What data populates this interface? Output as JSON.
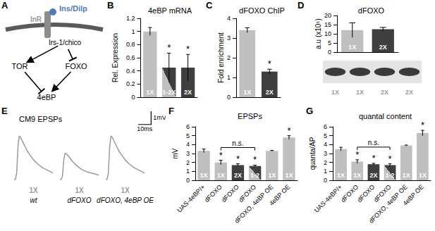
{
  "diagram": {
    "panel": "A",
    "nodes": [
      {
        "label": "Ins/Dilp",
        "color": "#4a7ebb"
      },
      {
        "label": "InR",
        "color": "#999999"
      },
      {
        "label": "Irs-1/chico",
        "color": "#000000"
      },
      {
        "label": "TOR",
        "color": "#000000"
      },
      {
        "label": "FOXO",
        "color": "#000000"
      },
      {
        "label": "4eBP",
        "color": "#000000"
      }
    ],
    "edges": [
      {
        "from": "Irs-1/chico",
        "to": "TOR",
        "kind": "activates"
      },
      {
        "from": "Irs-1/chico",
        "to": "FOXO",
        "kind": "inhibits"
      },
      {
        "from": "TOR",
        "to": "4eBP",
        "kind": "inhibits"
      },
      {
        "from": "FOXO",
        "to": "4eBP",
        "kind": "activates"
      }
    ]
  },
  "chart_data": [
    {
      "panel": "B",
      "type": "bar",
      "title": "4eBP mRNA",
      "ylabel": "Rel. Expression",
      "categories": [
        "1X",
        "1-2X",
        "2X"
      ],
      "values": [
        1.0,
        0.45,
        0.45
      ],
      "errors": [
        0.06,
        0.22,
        0.2
      ],
      "bar_labels": [
        "1X",
        "1-2X",
        "2X"
      ],
      "annotations": [
        null,
        "*",
        "*"
      ],
      "colors": [
        "#bfbfbf",
        [
          "#bfbfbf",
          "#3f3f3f"
        ],
        "#3f3f3f"
      ],
      "ylim": [
        0,
        1.2
      ],
      "yticks": [
        0,
        0.2,
        0.4,
        0.6,
        0.8,
        1,
        1.2
      ],
      "grid": false,
      "tick_labels": "y"
    },
    {
      "panel": "C",
      "type": "bar",
      "title": "dFOXO ChIP",
      "ylabel": "Fold enrichment",
      "categories": [
        "1X",
        "2X"
      ],
      "values": [
        3.4,
        1.3
      ],
      "errors": [
        0.12,
        0.12
      ],
      "bar_labels": [
        "1X",
        "2X"
      ],
      "annotations": [
        null,
        "*"
      ],
      "colors": [
        "#bfbfbf",
        "#3f3f3f"
      ],
      "ylim": [
        0,
        4
      ],
      "yticks": [
        0,
        1,
        2,
        3,
        4
      ],
      "grid": false,
      "tick_labels": "y"
    },
    {
      "panel": "D",
      "type": "bar",
      "title": "dFOXO",
      "ylabel": "a.u (x10⁵)",
      "categories": [
        "1X",
        "2X"
      ],
      "values": [
        12,
        12.5
      ],
      "errors": [
        4,
        1
      ],
      "bar_labels": [
        "1X",
        "2X"
      ],
      "colors": [
        "#bfbfbf",
        "#3f3f3f"
      ],
      "ylim": [
        0,
        20
      ],
      "yticks": [
        0,
        5,
        10,
        15,
        20
      ],
      "grid": false,
      "tick_labels": "y",
      "blot_lanes": [
        "1X",
        "1X",
        "2X",
        "2X"
      ]
    },
    {
      "panel": "E",
      "type": "line",
      "title": "CM9 EPSPs",
      "x": [
        0,
        1,
        2,
        3,
        4,
        5,
        6,
        8,
        10,
        12,
        15,
        18,
        22,
        26,
        30
      ],
      "series": [
        {
          "name": "wt",
          "label": "1X",
          "color": "#9a9a9a",
          "values": [
            0,
            0,
            0.5,
            2.5,
            3.3,
            3.2,
            3.0,
            2.6,
            2.2,
            1.9,
            1.5,
            1.2,
            0.9,
            0.7,
            0.5
          ]
        },
        {
          "name": "dFOXO",
          "label": "1X",
          "color": "#9a9a9a",
          "values": [
            0,
            0,
            0.3,
            1.5,
            2.0,
            1.95,
            1.85,
            1.6,
            1.35,
            1.15,
            0.9,
            0.7,
            0.55,
            0.45,
            0.35
          ]
        },
        {
          "name": "dFOXO, 4eBP OE",
          "label": "1X",
          "color": "#9a9a9a",
          "values": [
            0,
            0,
            0.5,
            2.4,
            3.3,
            3.2,
            3.0,
            2.6,
            2.2,
            1.9,
            1.5,
            1.2,
            0.9,
            0.7,
            0.5
          ]
        }
      ],
      "xlim": [
        0,
        30
      ],
      "ylim": [
        0,
        4
      ],
      "tick_labels": false,
      "scale_bar": {
        "x": 10,
        "x_label": "10ms",
        "y": 1,
        "y_label": "1mV"
      }
    },
    {
      "panel": "F",
      "type": "bar",
      "title": "EPSPs",
      "ylabel": "mV",
      "categories": [
        "UAS-4eBP/+",
        "dFOXO",
        "dFOXO",
        "dFOXO",
        "dFOXO, 4eBP OE",
        "4eBP OE"
      ],
      "values": [
        3.3,
        2.0,
        1.7,
        1.6,
        3.3,
        4.8
      ],
      "errors": [
        0.2,
        0.25,
        0.15,
        0.1,
        0.05,
        0.2
      ],
      "bar_labels": [
        "1X",
        "1X",
        "2X",
        "1-2",
        "1X",
        "1X"
      ],
      "annotations": [
        null,
        "*",
        "*",
        "*",
        null,
        "*"
      ],
      "bracket": {
        "from": 1,
        "to": 3,
        "text": "n.s."
      },
      "colors": [
        "#bfbfbf",
        "#bfbfbf",
        "#3f3f3f",
        [
          "#bfbfbf",
          "#3f3f3f"
        ],
        "#bfbfbf",
        "#bfbfbf"
      ],
      "ylim": [
        0,
        6
      ],
      "yticks": [
        0,
        1,
        2,
        3,
        4,
        5,
        6
      ],
      "grid": false
    },
    {
      "panel": "G",
      "type": "bar",
      "title": "quantal content",
      "ylabel": "quanta/AP",
      "categories": [
        "UAS-4eBP/+",
        "dFOXO",
        "dFOXO",
        "dFOXO",
        "dFOXO, 4eBP OE",
        "4eBP OE"
      ],
      "values": [
        3.5,
        2.1,
        1.8,
        1.7,
        3.9,
        5.3
      ],
      "errors": [
        0.2,
        0.2,
        0.1,
        0.15,
        0.05,
        0.3
      ],
      "bar_labels": [
        "1X",
        "1X",
        "2X",
        "1-2",
        "1X",
        "1X"
      ],
      "annotations": [
        null,
        "*",
        "*",
        "*",
        null,
        "*"
      ],
      "bracket": {
        "from": 1,
        "to": 3,
        "text": "n.s."
      },
      "colors": [
        "#bfbfbf",
        "#bfbfbf",
        "#3f3f3f",
        [
          "#bfbfbf",
          "#3f3f3f"
        ],
        "#bfbfbf",
        "#bfbfbf"
      ],
      "ylim": [
        0,
        6
      ],
      "yticks": [
        0,
        1,
        2,
        3,
        4,
        5,
        6
      ],
      "grid": false
    }
  ]
}
